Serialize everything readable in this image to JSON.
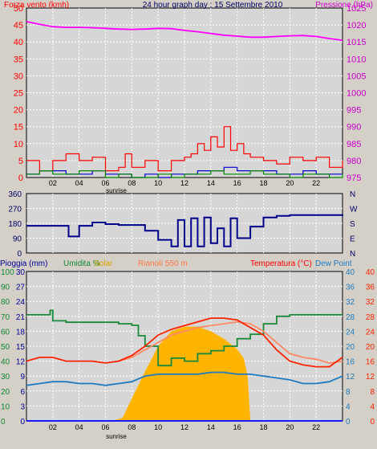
{
  "header": {
    "left_label": "Forza vento (kmh)",
    "center_label": "24 hour graph day : 15 Settembre 2010",
    "right_label": "Pressione (hPa)"
  },
  "footer_labels": {
    "top_sunrise": "sunrise",
    "bottom_sunrise": "sunrise"
  },
  "bottom_header": {
    "rain": "Pioggia (mm)",
    "humidity": "Umidita %",
    "solar": "Solar",
    "cloud": "Rianolì 550 m",
    "temp": "Temperatura (°C)",
    "dew": "Dew Point"
  },
  "colors": {
    "wind_speed": "#ff0000",
    "wind_gust_avg": "#0000cc",
    "wind_green": "#008800",
    "pressure": "#ff00ff",
    "direction": "#00008b",
    "temperature": "#ff2200",
    "temp_felt": "#ff8866",
    "humidity": "#1a8a3a",
    "dewpoint": "#1f7bbf",
    "solar": "#ffb400",
    "rain": "#1a1aff",
    "plot_bg": "#d6d6d6",
    "grid": "#ffffff"
  },
  "chart_data": [
    {
      "type": "line",
      "title": "24 hour graph day : 15 Settembre 2010",
      "x_ticks": [
        "02",
        "04",
        "06",
        "08",
        "10",
        "12",
        "14",
        "16",
        "18",
        "20",
        "22"
      ],
      "xlim": [
        0,
        24
      ],
      "left_axis": {
        "label": "Forza vento (kmh)",
        "ticks": [
          0,
          5,
          10,
          15,
          20,
          25,
          30,
          35,
          40,
          45,
          50
        ],
        "ylim": [
          0,
          50
        ]
      },
      "right_axis": {
        "label": "Pressione (hPa)",
        "ticks": [
          975,
          980,
          985,
          990,
          995,
          1000,
          1005,
          1010,
          1015,
          1020,
          1025
        ],
        "ylim": [
          975,
          1025
        ]
      },
      "series": [
        {
          "axis": "right",
          "color": "pressure",
          "x": [
            0,
            1,
            2,
            3,
            4,
            5,
            6,
            7,
            8,
            9,
            10,
            11,
            12,
            13,
            14,
            15,
            16,
            17,
            18,
            19,
            20,
            21,
            22,
            23,
            24
          ],
          "values": [
            1021,
            1020.2,
            1019.5,
            1019.3,
            1019.3,
            1019.2,
            1019.0,
            1018.8,
            1018.7,
            1018.8,
            1019.0,
            1018.9,
            1018.4,
            1018.0,
            1017.5,
            1017.0,
            1016.7,
            1016.4,
            1016.4,
            1016.6,
            1016.8,
            1016.9,
            1016.6,
            1016.0,
            1015.5
          ]
        },
        {
          "axis": "left",
          "color": "wind_speed",
          "x": [
            0,
            1,
            2,
            3,
            4,
            5,
            6,
            7,
            7.5,
            8,
            9,
            10,
            11,
            12,
            12.5,
            13,
            13.5,
            14,
            14.5,
            15,
            15.5,
            16,
            16.5,
            17,
            18,
            19,
            20,
            21,
            22,
            23,
            24
          ],
          "values": [
            5,
            2,
            5,
            7,
            5,
            6,
            2,
            3,
            7,
            3,
            5,
            2,
            5,
            6,
            7,
            10,
            8,
            12,
            9,
            15,
            8,
            10,
            7,
            6,
            5,
            4,
            6,
            5,
            6,
            3,
            5
          ]
        },
        {
          "axis": "left",
          "color": "wind_gust_avg",
          "x": [
            0,
            1,
            2,
            3,
            4,
            5,
            6,
            7,
            8,
            9,
            10,
            11,
            12,
            13,
            14,
            15,
            16,
            17,
            18,
            19,
            20,
            21,
            22,
            23,
            24
          ],
          "values": [
            1,
            2,
            2,
            1,
            1,
            2,
            1,
            1,
            0,
            1,
            0,
            1,
            1,
            2,
            2,
            3,
            2,
            2,
            2,
            1,
            1,
            2,
            1,
            1,
            1
          ]
        },
        {
          "axis": "left",
          "color": "wind_green",
          "x": [
            0,
            1,
            2,
            3,
            4,
            5,
            6,
            7,
            8,
            9,
            10,
            11,
            12,
            13,
            14,
            15,
            16,
            17,
            18,
            19,
            20,
            21,
            22,
            23,
            24
          ],
          "values": [
            1,
            2,
            1,
            1,
            2,
            2,
            0,
            1,
            0,
            0,
            1,
            0,
            1,
            1,
            2,
            1,
            1,
            2,
            1,
            1,
            0,
            1,
            1,
            0,
            1
          ]
        }
      ]
    },
    {
      "type": "line",
      "x_ticks": [
        "02",
        "04",
        "06",
        "08",
        "10",
        "12",
        "14",
        "16",
        "18",
        "20",
        "22"
      ],
      "xlim": [
        0,
        24
      ],
      "left_axis": {
        "label": "",
        "ticks": [
          0,
          90,
          180,
          270,
          360
        ],
        "ylim": [
          0,
          360
        ]
      },
      "right_axis": {
        "label": "",
        "ticks": [
          "N",
          "E",
          "S",
          "W",
          "N"
        ]
      },
      "series": [
        {
          "color": "direction",
          "x": [
            0,
            3,
            3.2,
            4,
            5,
            6,
            7,
            8,
            9,
            10,
            11,
            11.5,
            12,
            12.5,
            13,
            13.5,
            14,
            14.5,
            15,
            15.5,
            16,
            17,
            18,
            19,
            20,
            22,
            24
          ],
          "values": [
            165,
            165,
            100,
            165,
            185,
            175,
            170,
            170,
            135,
            80,
            40,
            200,
            40,
            210,
            40,
            215,
            60,
            150,
            40,
            210,
            90,
            160,
            215,
            225,
            230,
            230,
            235
          ]
        }
      ]
    },
    {
      "type": "line",
      "x_ticks": [
        "02",
        "04",
        "06",
        "08",
        "10",
        "12",
        "14",
        "16",
        "18",
        "20",
        "22"
      ],
      "xlim": [
        0,
        24
      ],
      "left_axis_rain": {
        "label": "Pioggia (mm)",
        "ticks": [
          0,
          3,
          6,
          9,
          12,
          15,
          18,
          21,
          24,
          27,
          30
        ]
      },
      "left_axis_humidity": {
        "label": "Umidita %",
        "ticks": [
          0,
          10,
          20,
          30,
          40,
          50,
          60,
          70,
          80,
          90,
          100
        ],
        "ylim": [
          0,
          100
        ]
      },
      "right_axis_temp": {
        "label": "Temperatura (°C)",
        "ticks": [
          0,
          4,
          8,
          12,
          16,
          20,
          24,
          28,
          32,
          36,
          40
        ],
        "ylim": [
          0,
          40
        ]
      },
      "series": [
        {
          "name": "Umidita %",
          "axis": "humidity",
          "color": "humidity",
          "x": [
            0,
            1,
            1.8,
            2,
            3,
            4,
            5,
            6,
            7,
            8,
            8.5,
            9,
            10,
            11,
            12,
            13,
            14,
            15,
            16,
            17,
            18,
            19,
            20,
            21,
            22,
            23,
            24
          ],
          "values": [
            71,
            71,
            74,
            67,
            66,
            66,
            66,
            66,
            65,
            64,
            57,
            50,
            37,
            42,
            40,
            45,
            47,
            50,
            55,
            58,
            65,
            70,
            71,
            71,
            71,
            71,
            71
          ]
        },
        {
          "name": "Solar",
          "axis": "humidity",
          "color": "solar",
          "fill": true,
          "x": [
            0,
            6.5,
            7.3,
            8,
            9,
            10,
            11,
            12,
            13,
            14,
            15,
            16,
            16.5,
            16.8,
            17,
            24
          ],
          "values": [
            0,
            0,
            2,
            15,
            33,
            50,
            60,
            63,
            63,
            60,
            55,
            48,
            42,
            30,
            0,
            0
          ]
        },
        {
          "name": "Temperatura (°C)",
          "axis": "temp",
          "color": "temperature",
          "x": [
            0,
            1,
            2,
            3,
            4,
            5,
            6,
            7,
            8,
            9,
            10,
            11,
            12,
            13,
            14,
            15,
            16,
            17,
            18,
            19,
            20,
            21,
            22,
            23,
            24
          ],
          "values": [
            16,
            17,
            17,
            16,
            16,
            16,
            15.5,
            16,
            17.5,
            20,
            23,
            24.5,
            25.5,
            26.5,
            27.5,
            27.5,
            27,
            25,
            23,
            19,
            16,
            15,
            14.5,
            14.5,
            17
          ]
        },
        {
          "name": "Rianolì 550 m",
          "axis": "temp",
          "color": "temp_felt",
          "x": [
            7,
            8,
            9,
            10,
            11,
            12,
            13,
            14,
            15,
            16,
            17,
            18,
            19,
            20,
            21,
            22,
            23,
            24
          ],
          "values": [
            16,
            17,
            19,
            21,
            23,
            24,
            25,
            25.5,
            26,
            26.5,
            26,
            24,
            21,
            18,
            17,
            16.5,
            15.5,
            16
          ]
        },
        {
          "name": "Dew Point",
          "axis": "temp",
          "color": "dewpoint",
          "x": [
            0,
            1,
            2,
            3,
            4,
            5,
            6,
            7,
            8,
            9,
            10,
            11,
            12,
            13,
            14,
            15,
            16,
            17,
            18,
            19,
            20,
            21,
            22,
            23,
            24
          ],
          "values": [
            9.5,
            10,
            10.5,
            10.5,
            10,
            10,
            9.5,
            10,
            10.5,
            12,
            12.5,
            12.5,
            12.5,
            12.5,
            13,
            13,
            12.5,
            12.5,
            12,
            11.5,
            11,
            10,
            10,
            10.5,
            12
          ]
        },
        {
          "name": "Pioggia (mm)",
          "axis": "rain",
          "color": "rain",
          "x": [
            0,
            24
          ],
          "values": [
            0,
            0
          ]
        }
      ]
    }
  ]
}
